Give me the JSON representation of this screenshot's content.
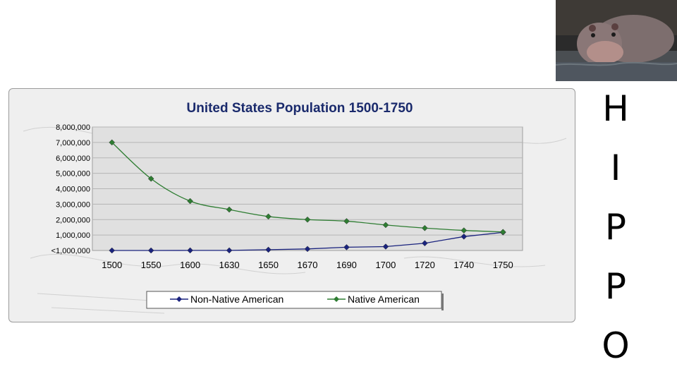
{
  "chart_data": {
    "type": "line",
    "title": "United States Population 1500-1750",
    "xlabel": "",
    "ylabel": "",
    "categories": [
      "1500",
      "1550",
      "1600",
      "1630",
      "1650",
      "1670",
      "1690",
      "1700",
      "1720",
      "1740",
      "1750"
    ],
    "y_tick_labels": [
      "<1,000,000",
      "1,000,000",
      "2,000,000",
      "3,000,000",
      "4,000,000",
      "5,000,000",
      "6,000,000",
      "7,000,000",
      "8,000,000"
    ],
    "ylim": [
      0,
      8000000
    ],
    "series": [
      {
        "name": "Non-Native American",
        "color": "#1a237e",
        "values": [
          0,
          0,
          5000,
          5000,
          50000,
          100000,
          210000,
          250000,
          470000,
          900000,
          1170000
        ]
      },
      {
        "name": "Native American",
        "color": "#2e7d32",
        "values": [
          7000000,
          4650000,
          3200000,
          2650000,
          2200000,
          2000000,
          1900000,
          1650000,
          1450000,
          1300000,
          1200000
        ]
      }
    ],
    "legend_position": "bottom",
    "grid": true
  },
  "side_text": {
    "letters": [
      "H",
      "I",
      "P",
      "P",
      "O"
    ]
  },
  "colors": {
    "panel_background": "#efefef",
    "plot_background": "#e0e0e0",
    "title": "#1a2a6c"
  }
}
